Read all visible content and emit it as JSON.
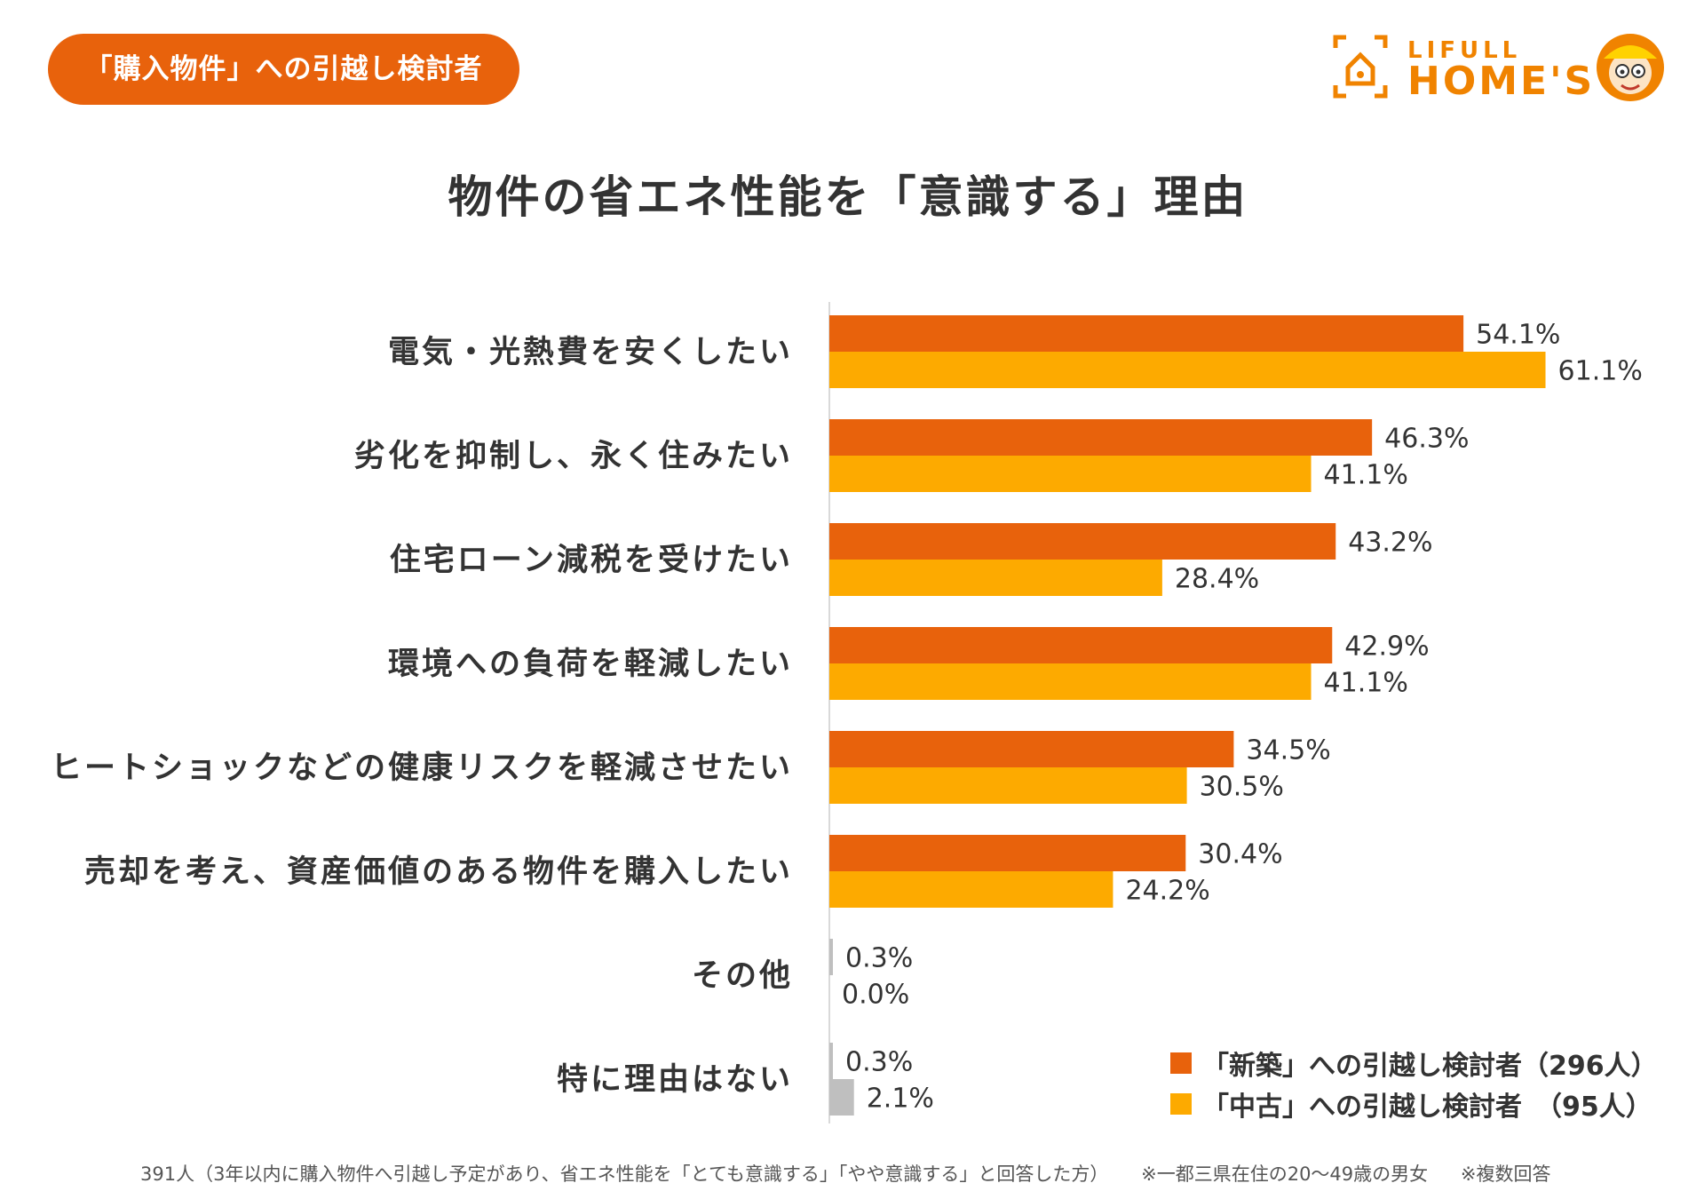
{
  "badge": {
    "label": "「購入物件」への引越し検討者"
  },
  "logo": {
    "line1": "LIFULL",
    "line2": "HOME'S"
  },
  "chart_data": {
    "type": "bar",
    "orientation": "horizontal",
    "title": "物件の省エネ性能を「意識する」理由",
    "categories": [
      "電気・光熱費を安くしたい",
      "劣化を抑制し、永く住みたい",
      "住宅ローン減税を受けたい",
      "環境への負荷を軽減したい",
      "ヒートショックなどの健康リスクを軽減させたい",
      "売却を考え、資産価値のある物件を購入したい",
      "その他",
      "特に理由はない"
    ],
    "series": [
      {
        "name": "「新築」への引越し検討者（296人）",
        "color": "#E8620C",
        "values": [
          54.1,
          46.3,
          43.2,
          42.9,
          34.5,
          30.4,
          0.3,
          0.3
        ]
      },
      {
        "name": "「中古」への引越し検討者　（95人）",
        "color": "#FDAA00",
        "values": [
          61.1,
          41.1,
          28.4,
          41.1,
          30.5,
          24.2,
          0.0,
          2.1
        ]
      }
    ],
    "minor_color": "#BFBFBF",
    "value_suffix": "%",
    "xlim": [
      0,
      100
    ],
    "legend_position": "bottom-right"
  },
  "footnote": {
    "base": "391人（3年以内に購入物件へ引越し予定があり、省エネ性能を「とても意識する」「やや意識する」と回答した方）",
    "region": "※一都三県在住の20〜49歳の男女",
    "multi": "※複数回答"
  }
}
